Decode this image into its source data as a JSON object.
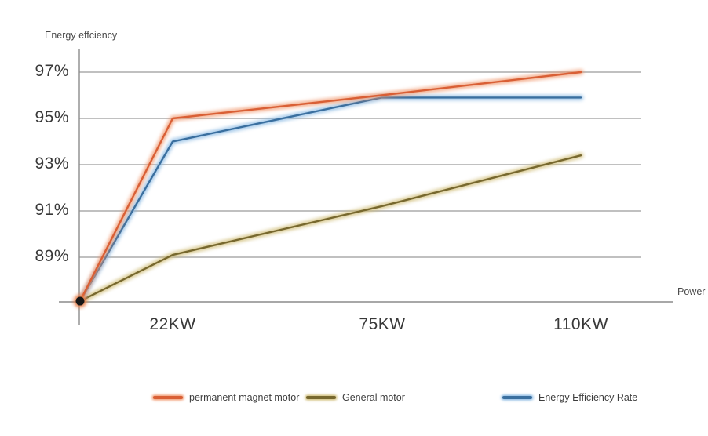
{
  "chart": {
    "y_tick_labels": [
      "97%",
      "95%",
      "93%",
      "91%",
      "89%"
    ],
    "x_tick_labels": [
      "22KW",
      "75KW",
      "110KW"
    ]
  },
  "chart_data": {
    "type": "line",
    "title": "",
    "xlabel": "Power",
    "ylabel": "Energy effciency",
    "categories": [
      "",
      "22KW",
      "75KW",
      "110KW"
    ],
    "x_power_kw": [
      0,
      22,
      75,
      110
    ],
    "series": [
      {
        "name": "permanent magnet motor",
        "color": "#d95f35",
        "glow_color": "#f0956a",
        "values": [
          87.1,
          95.0,
          96.0,
          97.0
        ]
      },
      {
        "name": "General motor",
        "color": "#77682e",
        "glow_color": "#cdb96f",
        "values": [
          87.1,
          89.1,
          91.2,
          93.4
        ]
      },
      {
        "name": "Energy Efficiency Rate",
        "color": "#3a6f9f",
        "glow_color": "#86b7e2",
        "values": [
          87.1,
          94.0,
          95.9,
          95.9
        ]
      }
    ],
    "y_ticks_percent": [
      97,
      95,
      93,
      91,
      89
    ],
    "y_tick_suffix": "%",
    "ylim_percent": [
      87.0,
      98.0
    ],
    "grid": true,
    "grid_color": "#9a9a9a",
    "axis_color": "#8c8c8c",
    "legend_position": "bottom",
    "origin_marker": {
      "at_percent": 87.1,
      "fill": "#161616",
      "glow": "#e97a42"
    }
  }
}
